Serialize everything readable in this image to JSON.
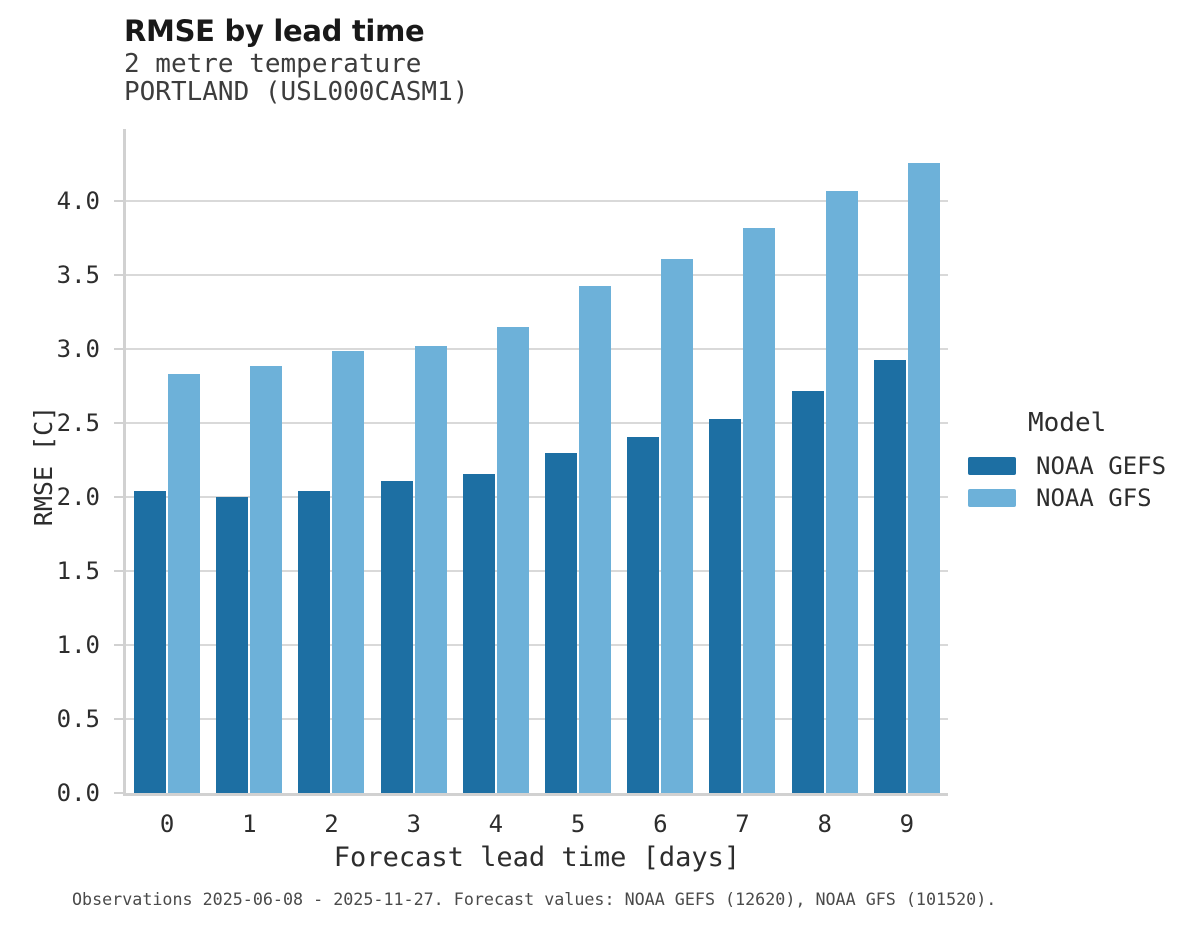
{
  "chart_data": {
    "type": "bar",
    "title": "RMSE by lead time",
    "subtitle_lines": [
      "2 metre temperature",
      "PORTLAND (USL000CASM1)"
    ],
    "categories": [
      "0",
      "1",
      "2",
      "3",
      "4",
      "5",
      "6",
      "7",
      "8",
      "9"
    ],
    "series": [
      {
        "name": "NOAA GEFS",
        "color": "#1d6fa3",
        "values": [
          2.04,
          2.0,
          2.04,
          2.11,
          2.16,
          2.3,
          2.41,
          2.53,
          2.72,
          2.93
        ]
      },
      {
        "name": "NOAA GFS",
        "color": "#6db1d9",
        "values": [
          2.83,
          2.89,
          2.99,
          3.02,
          3.15,
          3.43,
          3.61,
          3.82,
          4.07,
          4.26
        ]
      }
    ],
    "xlabel": "Forecast lead time [days]",
    "ylabel": "RMSE [C]",
    "ylim": [
      0.0,
      4.5
    ],
    "yticks": [
      0.0,
      0.5,
      1.0,
      1.5,
      2.0,
      2.5,
      3.0,
      3.5,
      4.0
    ],
    "grid": true,
    "grid_color": "#d9d9d9",
    "axis_color": "#d1d1d1",
    "legend": {
      "title": "Model",
      "position": "right"
    }
  },
  "footer": {
    "note": "Observations 2025-06-08 - 2025-11-27. Forecast values: NOAA GEFS (12620), NOAA GFS (101520)."
  }
}
